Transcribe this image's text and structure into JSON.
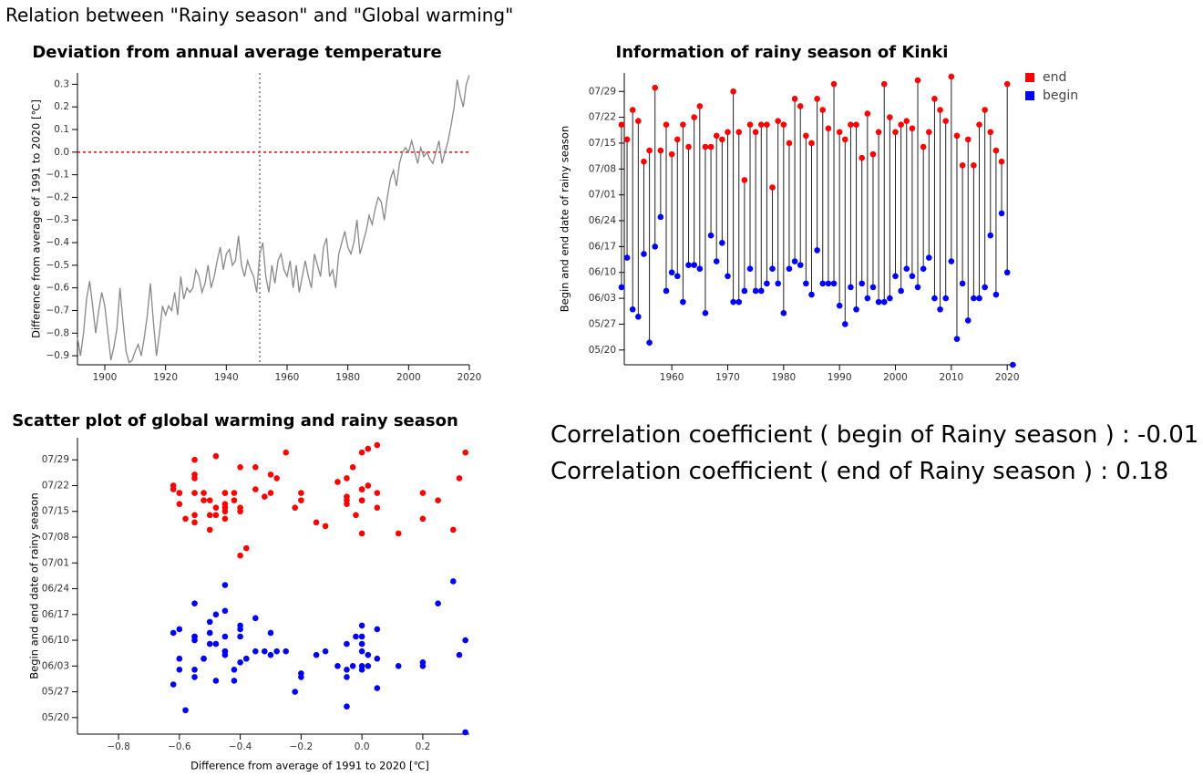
{
  "title": "Relation between \"Rainy season\" and \"Global warming\"",
  "chart_data": [
    {
      "type": "line",
      "title": "Deviation from annual average temperature",
      "y_label": "Difference from average of 1991 to 2020 [℃]",
      "x": [
        1891,
        1892,
        1893,
        1894,
        1895,
        1896,
        1897,
        1898,
        1899,
        1900,
        1901,
        1902,
        1903,
        1904,
        1905,
        1906,
        1907,
        1908,
        1909,
        1910,
        1911,
        1912,
        1913,
        1914,
        1915,
        1916,
        1917,
        1918,
        1919,
        1920,
        1921,
        1922,
        1923,
        1924,
        1925,
        1926,
        1927,
        1928,
        1929,
        1930,
        1931,
        1932,
        1933,
        1934,
        1935,
        1936,
        1937,
        1938,
        1939,
        1940,
        1941,
        1942,
        1943,
        1944,
        1945,
        1946,
        1947,
        1948,
        1949,
        1950,
        1951,
        1952,
        1953,
        1954,
        1955,
        1956,
        1957,
        1958,
        1959,
        1960,
        1961,
        1962,
        1963,
        1964,
        1965,
        1966,
        1967,
        1968,
        1969,
        1970,
        1971,
        1972,
        1973,
        1974,
        1975,
        1976,
        1977,
        1978,
        1979,
        1980,
        1981,
        1982,
        1983,
        1984,
        1985,
        1986,
        1987,
        1988,
        1989,
        1990,
        1991,
        1992,
        1993,
        1994,
        1995,
        1996,
        1997,
        1998,
        1999,
        2000,
        2001,
        2002,
        2003,
        2004,
        2005,
        2006,
        2007,
        2008,
        2009,
        2010,
        2011,
        2012,
        2013,
        2014,
        2015,
        2016,
        2017,
        2018,
        2019,
        2020
      ],
      "series": [
        {
          "color": "#888888",
          "values": [
            -0.82,
            -0.9,
            -0.8,
            -0.65,
            -0.57,
            -0.68,
            -0.8,
            -0.7,
            -0.62,
            -0.68,
            -0.8,
            -0.92,
            -0.86,
            -0.78,
            -0.6,
            -0.75,
            -0.88,
            -0.93,
            -0.92,
            -0.88,
            -0.85,
            -0.9,
            -0.82,
            -0.72,
            -0.58,
            -0.75,
            -0.9,
            -0.8,
            -0.68,
            -0.72,
            -0.68,
            -0.7,
            -0.62,
            -0.72,
            -0.55,
            -0.65,
            -0.6,
            -0.62,
            -0.6,
            -0.52,
            -0.55,
            -0.62,
            -0.58,
            -0.5,
            -0.6,
            -0.55,
            -0.48,
            -0.42,
            -0.52,
            -0.45,
            -0.43,
            -0.5,
            -0.48,
            -0.37,
            -0.5,
            -0.55,
            -0.48,
            -0.52,
            -0.55,
            -0.62,
            -0.45,
            -0.4,
            -0.55,
            -0.62,
            -0.5,
            -0.58,
            -0.48,
            -0.45,
            -0.52,
            -0.55,
            -0.48,
            -0.6,
            -0.5,
            -0.62,
            -0.55,
            -0.48,
            -0.55,
            -0.6,
            -0.45,
            -0.5,
            -0.55,
            -0.42,
            -0.38,
            -0.55,
            -0.52,
            -0.6,
            -0.45,
            -0.4,
            -0.35,
            -0.42,
            -0.45,
            -0.4,
            -0.3,
            -0.45,
            -0.4,
            -0.35,
            -0.28,
            -0.32,
            -0.25,
            -0.2,
            -0.22,
            -0.3,
            -0.2,
            -0.12,
            -0.08,
            -0.15,
            -0.05,
            0.0,
            0.02,
            0.0,
            0.05,
            0.0,
            -0.05,
            0.02,
            -0.02,
            0.0,
            -0.03,
            -0.05,
            0.0,
            0.05,
            -0.05,
            0.0,
            0.05,
            0.12,
            0.2,
            0.32,
            0.25,
            0.2,
            0.3,
            0.34
          ]
        }
      ],
      "xlim": [
        1891,
        2020
      ],
      "ylim": [
        -0.94,
        0.35
      ],
      "xticks": [
        1900,
        1920,
        1940,
        1960,
        1980,
        2000,
        2020
      ],
      "yticks": [
        0.3,
        0.2,
        0.1,
        {
          "value": 0,
          "label": "0.0"
        },
        {
          "value": -0.1,
          "label": "−0.1"
        },
        {
          "value": -0.2,
          "label": "−0.2"
        },
        {
          "value": -0.3,
          "label": "−0.3"
        },
        {
          "value": -0.4,
          "label": "−0.4"
        },
        {
          "value": -0.5,
          "label": "−0.5"
        },
        {
          "value": -0.6,
          "label": "−0.6"
        },
        {
          "value": -0.7,
          "label": "−0.7"
        },
        {
          "value": -0.8,
          "label": "−0.8"
        },
        {
          "value": -0.9,
          "label": "−0.9"
        }
      ],
      "hline": {
        "value": 0,
        "color": "#ff0000"
      },
      "vline": {
        "value": 1951,
        "color": "#777777"
      }
    },
    {
      "type": "lollipop",
      "title": "Information of rainy season of Kinki",
      "y_label": "Begin and end date of rainy season",
      "legend": "top-right",
      "x": [
        1951,
        1952,
        1953,
        1954,
        1955,
        1956,
        1957,
        1958,
        1959,
        1960,
        1961,
        1962,
        1963,
        1964,
        1965,
        1966,
        1967,
        1968,
        1969,
        1970,
        1971,
        1972,
        1973,
        1974,
        1975,
        1976,
        1977,
        1978,
        1979,
        1980,
        1981,
        1982,
        1983,
        1984,
        1985,
        1986,
        1987,
        1988,
        1989,
        1990,
        1991,
        1992,
        1993,
        1994,
        1995,
        1996,
        1997,
        1998,
        1999,
        2000,
        2001,
        2002,
        2003,
        2004,
        2005,
        2006,
        2007,
        2008,
        2009,
        2010,
        2011,
        2012,
        2013,
        2014,
        2015,
        2016,
        2017,
        2018,
        2019,
        2020,
        2021
      ],
      "series": [
        {
          "name": "end",
          "color": "#ff0000",
          "values": [
            201,
            197,
            205,
            202,
            191,
            194,
            211,
            194,
            201,
            193,
            197,
            201,
            195,
            203,
            206,
            195,
            195,
            198,
            197,
            199,
            210,
            199,
            186,
            201,
            199,
            201,
            201,
            184,
            202,
            201,
            196,
            208,
            206,
            198,
            196,
            208,
            205,
            200,
            212,
            199,
            197,
            201,
            201,
            192,
            204,
            193,
            199,
            212,
            203,
            199,
            201,
            202,
            200,
            213,
            195,
            199,
            208,
            205,
            202,
            214,
            198,
            190,
            197,
            190,
            201,
            205,
            199,
            194,
            191,
            212,
            null
          ]
        },
        {
          "name": "begin",
          "color": "#0000ff",
          "values": [
            157,
            165,
            151,
            149,
            166,
            142,
            168,
            176,
            156,
            161,
            160,
            153,
            163,
            163,
            162,
            150,
            171,
            164,
            169,
            160,
            153,
            153,
            156,
            162,
            156,
            156,
            158,
            162,
            158,
            150,
            162,
            164,
            163,
            158,
            155,
            167,
            158,
            158,
            158,
            152,
            147,
            157,
            151,
            158,
            154,
            157,
            153,
            153,
            154,
            160,
            156,
            162,
            160,
            157,
            162,
            165,
            154,
            151,
            154,
            164,
            143,
            158,
            148,
            154,
            154,
            157,
            171,
            155,
            177,
            161,
            136
          ]
        }
      ],
      "xlim": [
        1951.5,
        2021.6
      ],
      "ylim": [
        136,
        215
      ],
      "xticks": [
        1960,
        1970,
        1980,
        1990,
        2000,
        2010,
        2020
      ],
      "yticks": [
        {
          "value": 140,
          "label": "05/20"
        },
        {
          "value": 147,
          "label": "05/27"
        },
        {
          "value": 154,
          "label": "06/03"
        },
        {
          "value": 161,
          "label": "06/10"
        },
        {
          "value": 168,
          "label": "06/17"
        },
        {
          "value": 175,
          "label": "06/24"
        },
        {
          "value": 182,
          "label": "07/01"
        },
        {
          "value": 189,
          "label": "07/08"
        },
        {
          "value": 196,
          "label": "07/15"
        },
        {
          "value": 203,
          "label": "07/22"
        },
        {
          "value": 210,
          "label": "07/29"
        }
      ]
    },
    {
      "type": "scatter",
      "title": "Scatter plot of global warming and rainy season",
      "y_label": "Begin and end date of rainy season",
      "x_label": "Difference from average of 1991 to 2020 [℃]",
      "x": [
        -0.45,
        -0.4,
        -0.55,
        -0.62,
        -0.5,
        -0.58,
        -0.48,
        -0.45,
        -0.52,
        -0.55,
        -0.48,
        -0.6,
        -0.5,
        -0.62,
        -0.55,
        -0.48,
        -0.55,
        -0.6,
        -0.45,
        -0.5,
        -0.55,
        -0.42,
        -0.38,
        -0.55,
        -0.52,
        -0.6,
        -0.45,
        -0.4,
        -0.35,
        -0.42,
        -0.45,
        -0.4,
        -0.3,
        -0.45,
        -0.4,
        -0.35,
        -0.28,
        -0.32,
        -0.25,
        -0.2,
        -0.22,
        -0.3,
        -0.2,
        -0.12,
        -0.08,
        -0.15,
        -0.05,
        0.0,
        0.02,
        0.0,
        0.05,
        0.0,
        -0.05,
        0.02,
        -0.02,
        0.0,
        -0.03,
        -0.05,
        0.0,
        0.05,
        -0.05,
        0.0,
        0.05,
        0.12,
        0.2,
        0.32,
        0.25,
        0.2,
        0.3,
        0.34,
        0.34
      ],
      "series": [
        {
          "color": "#ff0000",
          "values": [
            201,
            197,
            205,
            202,
            191,
            194,
            211,
            194,
            201,
            193,
            197,
            201,
            195,
            203,
            206,
            195,
            195,
            198,
            197,
            199,
            210,
            199,
            186,
            201,
            199,
            201,
            201,
            184,
            202,
            201,
            196,
            208,
            206,
            198,
            196,
            208,
            205,
            200,
            212,
            199,
            197,
            201,
            201,
            192,
            204,
            193,
            199,
            212,
            203,
            199,
            201,
            202,
            200,
            213,
            195,
            199,
            208,
            205,
            202,
            214,
            198,
            190,
            197,
            190,
            201,
            205,
            199,
            194,
            191,
            212,
            null
          ]
        },
        {
          "color": "#0000ff",
          "values": [
            157,
            165,
            151,
            149,
            166,
            142,
            168,
            176,
            156,
            161,
            160,
            153,
            163,
            163,
            162,
            150,
            171,
            164,
            169,
            160,
            153,
            153,
            156,
            162,
            156,
            156,
            158,
            162,
            158,
            150,
            162,
            164,
            163,
            158,
            155,
            167,
            158,
            158,
            158,
            152,
            147,
            157,
            151,
            158,
            154,
            157,
            153,
            153,
            154,
            160,
            156,
            162,
            160,
            157,
            162,
            165,
            154,
            151,
            154,
            164,
            143,
            158,
            148,
            154,
            154,
            157,
            171,
            155,
            177,
            161,
            136
          ]
        }
      ],
      "xlim": [
        -0.935,
        0.353
      ],
      "ylim": [
        135.5,
        216
      ],
      "xticks": [
        {
          "value": -0.8,
          "label": "−0.8"
        },
        {
          "value": -0.6,
          "label": "−0.6"
        },
        {
          "value": -0.4,
          "label": "−0.4"
        },
        {
          "value": -0.2,
          "label": "−0.2"
        },
        {
          "value": 0,
          "label": "0.0"
        },
        0.2
      ],
      "yticks": [
        {
          "value": 140,
          "label": "05/20"
        },
        {
          "value": 147,
          "label": "05/27"
        },
        {
          "value": 154,
          "label": "06/03"
        },
        {
          "value": 161,
          "label": "06/10"
        },
        {
          "value": 168,
          "label": "06/17"
        },
        {
          "value": 175,
          "label": "06/24"
        },
        {
          "value": 182,
          "label": "07/01"
        },
        {
          "value": 189,
          "label": "07/08"
        },
        {
          "value": 196,
          "label": "07/15"
        },
        {
          "value": 203,
          "label": "07/22"
        },
        {
          "value": 210,
          "label": "07/29"
        }
      ]
    }
  ],
  "correlations": [
    {
      "label": "Correlation coefficient ( begin of Rainy season ) :",
      "value": -0.01
    },
    {
      "label": "Correlation coefficient ( end of Rainy season ) :",
      "value": 0.18
    }
  ]
}
